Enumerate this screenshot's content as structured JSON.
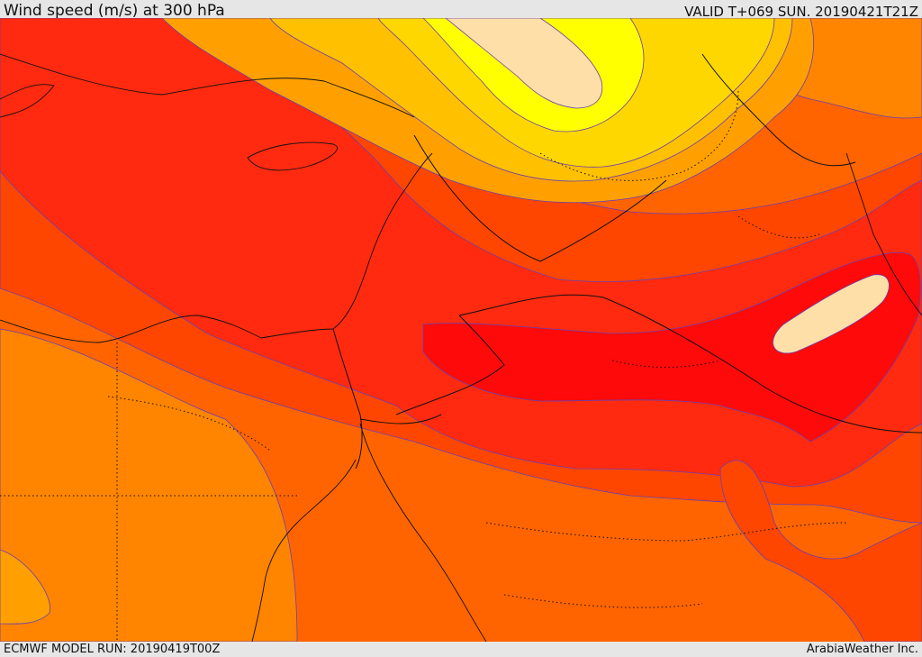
{
  "header": {
    "title": "Wind speed (m/s) at 300 hPa",
    "valid": "VALID T+069 SUN. 20190421T21Z"
  },
  "footer": {
    "model_run": "ECMWF MODEL RUN: 20190419T00Z",
    "brand": "ArabiaWeather Inc."
  },
  "palette": {
    "band_1": "#ffdfa8",
    "band_2": "#ffff00",
    "band_3": "#ffd700",
    "band_4": "#ffc000",
    "band_5": "#ffa000",
    "band_6": "#ff8400",
    "band_7": "#ff6400",
    "band_8": "#ff4600",
    "band_9": "#ff2a10",
    "band_10": "#ff0a0a",
    "jet_core": "#ffdfa8"
  }
}
